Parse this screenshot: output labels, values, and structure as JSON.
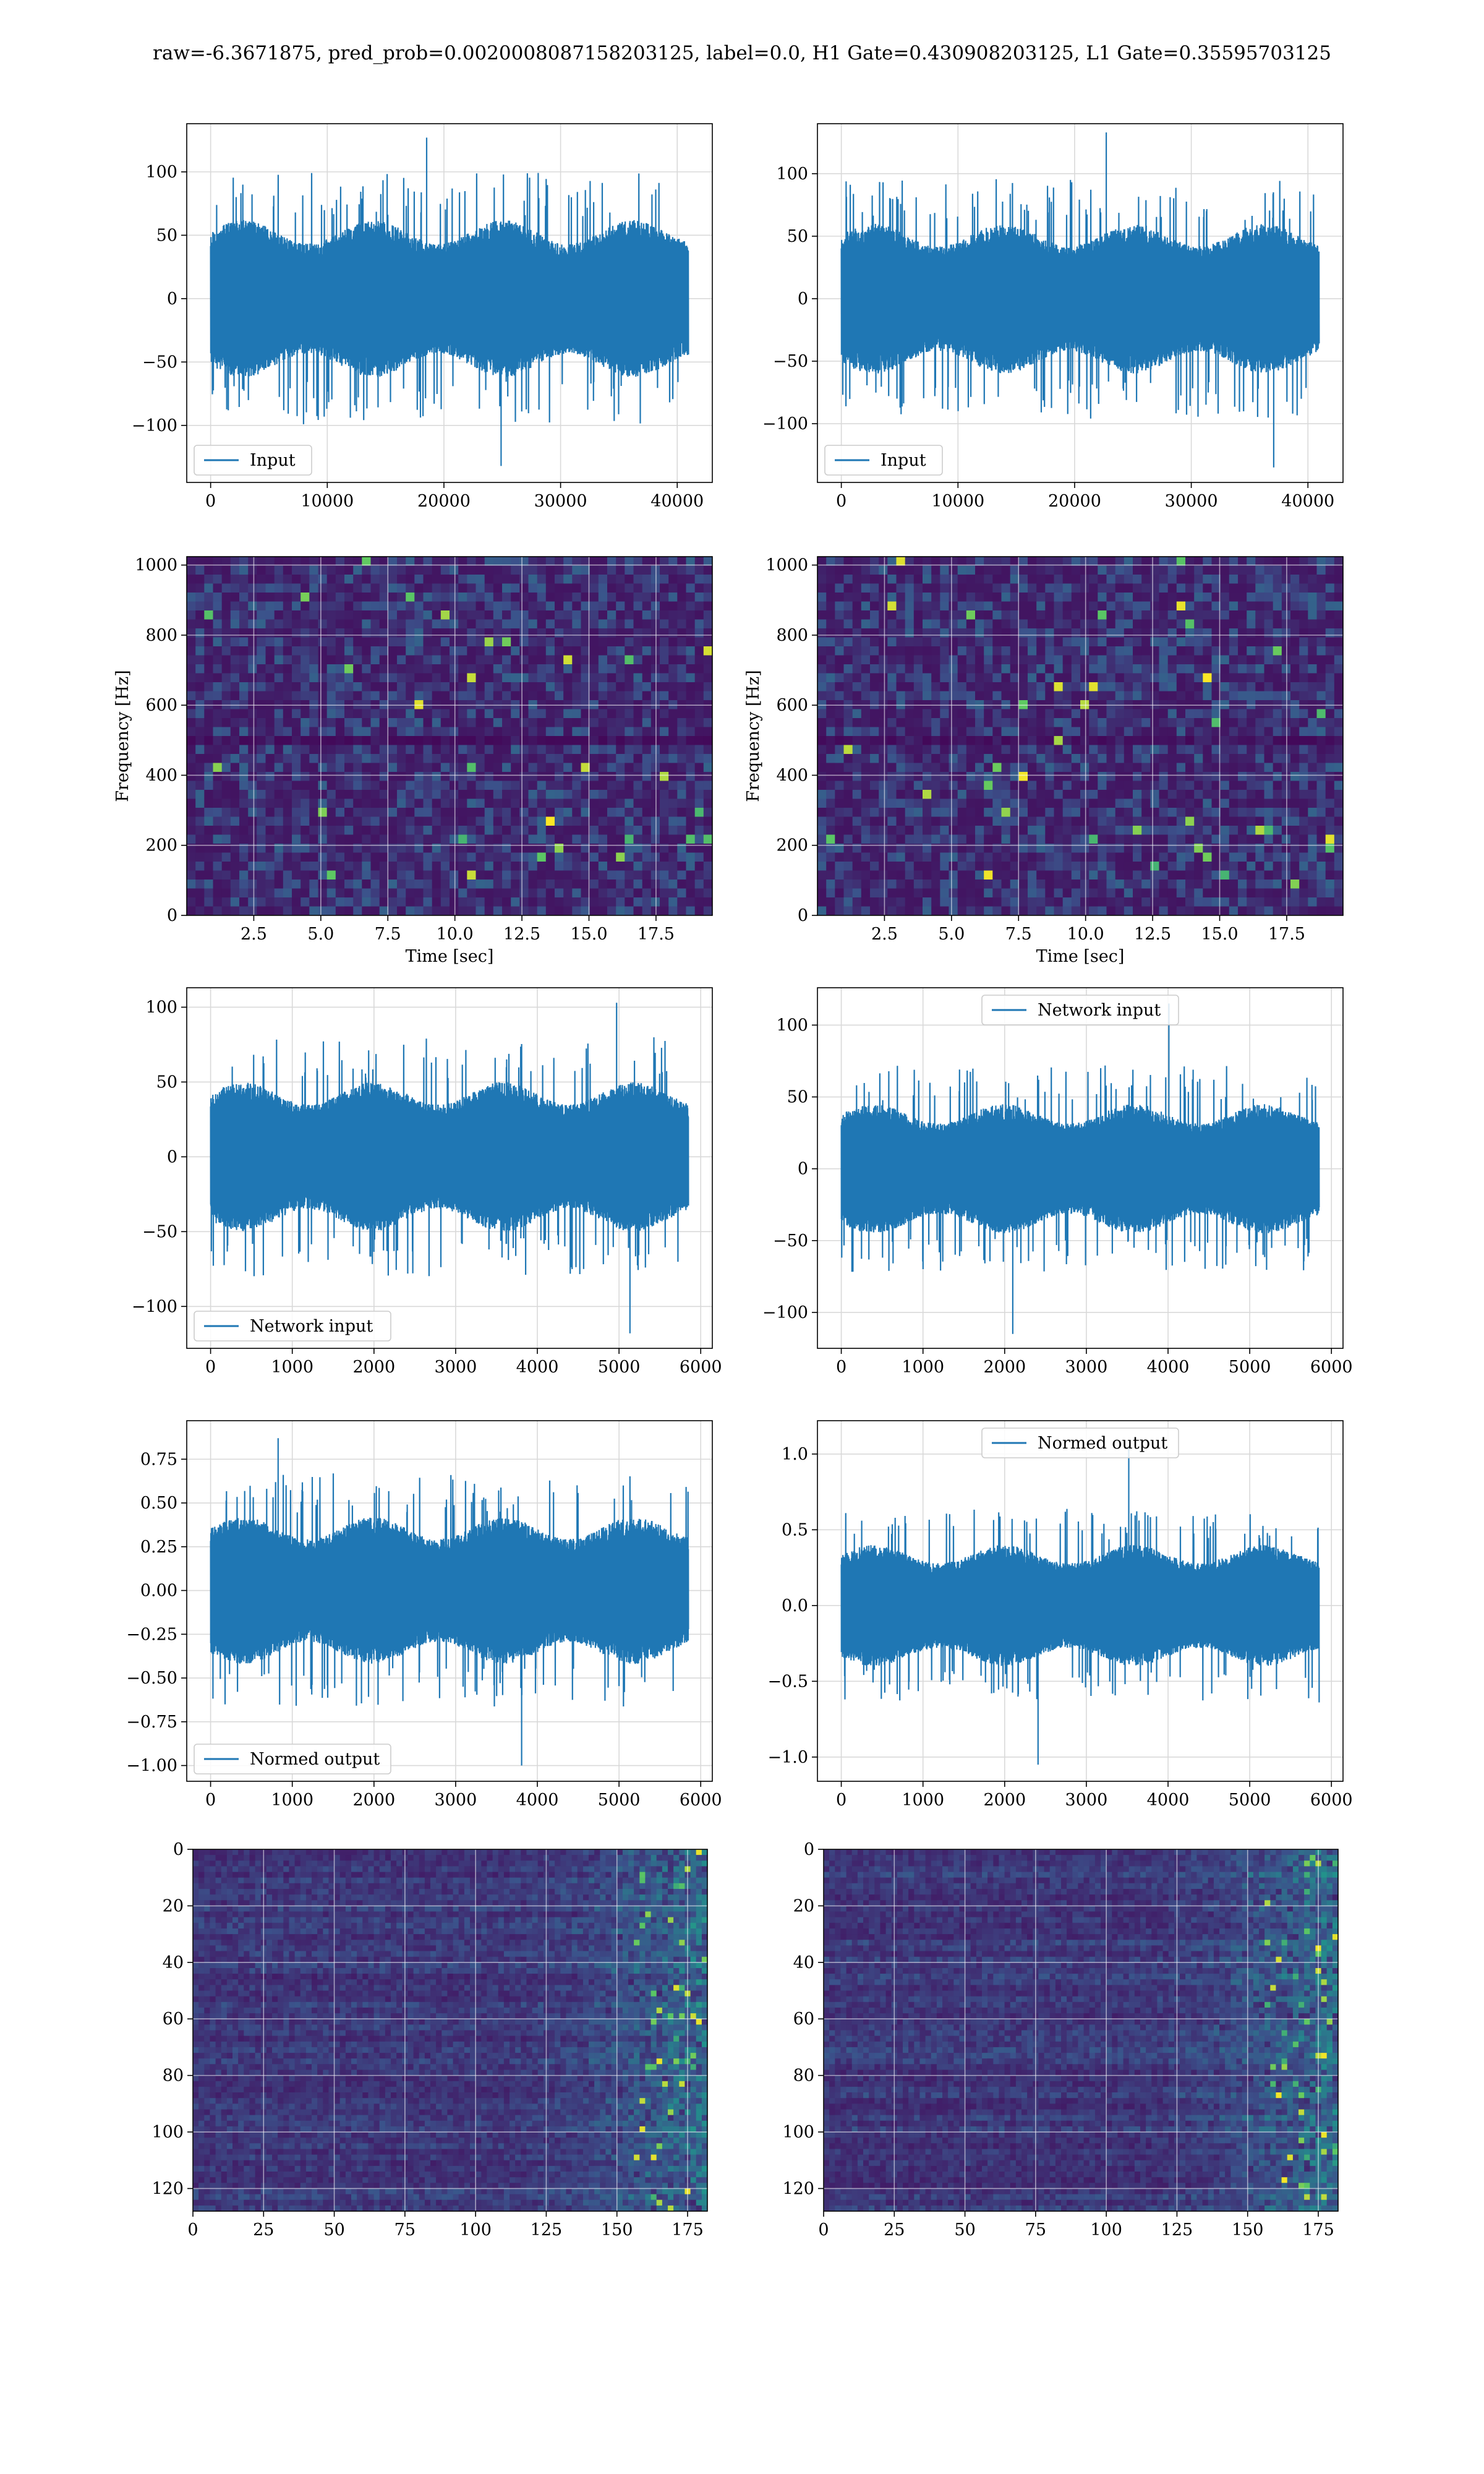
{
  "suptitle": "raw=-6.3671875, pred_prob=0.0020008087158203125, label=0.0, H1 Gate=0.430908203125, L1 Gate=0.35595703125",
  "colors": {
    "line": "#1f77b4",
    "grid": "#d9d9d9",
    "viridis": [
      "#440154",
      "#3b528b",
      "#21918c",
      "#5ec962",
      "#fde725"
    ]
  },
  "chart_data": [
    {
      "id": "h1-input",
      "type": "line",
      "seed": 11,
      "x_range": [
        0,
        40960
      ],
      "xlim": [
        -2048,
        43008
      ],
      "ylim": [
        -145,
        138
      ],
      "xticks": [
        0,
        10000,
        20000,
        30000,
        40000
      ],
      "xtick_labels": [
        "0",
        "10000",
        "20000",
        "30000",
        "40000"
      ],
      "yticks": [
        -100,
        -50,
        0,
        50,
        100
      ],
      "ytick_labels": [
        "−100",
        "−50",
        "0",
        "50",
        "100"
      ],
      "envelope": {
        "core": 62,
        "peak_max": 127,
        "peak_min": -132
      },
      "legend": {
        "label": "Input",
        "loc": "lower left"
      },
      "xlabel": "",
      "ylabel": "",
      "grid": true
    },
    {
      "id": "l1-input",
      "type": "line",
      "seed": 23,
      "x_range": [
        0,
        40960
      ],
      "xlim": [
        -2048,
        43008
      ],
      "ylim": [
        -147,
        140
      ],
      "xticks": [
        0,
        10000,
        20000,
        30000,
        40000
      ],
      "xtick_labels": [
        "0",
        "10000",
        "20000",
        "30000",
        "40000"
      ],
      "yticks": [
        -100,
        -50,
        0,
        50,
        100
      ],
      "ytick_labels": [
        "−100",
        "−50",
        "0",
        "50",
        "100"
      ],
      "envelope": {
        "core": 60,
        "peak_max": 133,
        "peak_min": -135
      },
      "legend": {
        "label": "Input",
        "loc": "lower left"
      },
      "xlabel": "",
      "ylabel": "",
      "grid": true
    },
    {
      "id": "h1-spectrogram",
      "type": "heatmap",
      "seed": 37,
      "kind": "spectrogram",
      "xlim": [
        0,
        19.6
      ],
      "ylim": [
        0,
        1024
      ],
      "xticks": [
        2.5,
        5.0,
        7.5,
        10.0,
        12.5,
        15.0,
        17.5
      ],
      "xtick_labels": [
        "2.5",
        "5.0",
        "7.5",
        "10.0",
        "12.5",
        "15.0",
        "17.5"
      ],
      "yticks": [
        0,
        200,
        400,
        600,
        800,
        1000
      ],
      "ytick_labels": [
        "0",
        "200",
        "400",
        "600",
        "800",
        "1000"
      ],
      "xlabel": "Time [sec]",
      "ylabel": "Frequency [Hz]",
      "grid": true
    },
    {
      "id": "l1-spectrogram",
      "type": "heatmap",
      "seed": 41,
      "kind": "spectrogram",
      "xlim": [
        0,
        19.6
      ],
      "ylim": [
        0,
        1024
      ],
      "xticks": [
        2.5,
        5.0,
        7.5,
        10.0,
        12.5,
        15.0,
        17.5
      ],
      "xtick_labels": [
        "2.5",
        "5.0",
        "7.5",
        "10.0",
        "12.5",
        "15.0",
        "17.5"
      ],
      "yticks": [
        0,
        200,
        400,
        600,
        800,
        1000
      ],
      "ytick_labels": [
        "0",
        "200",
        "400",
        "600",
        "800",
        "1000"
      ],
      "xlabel": "Time [sec]",
      "ylabel": "Frequency [Hz]",
      "grid": true
    },
    {
      "id": "h1-network-input",
      "type": "line",
      "seed": 53,
      "x_range": [
        0,
        5850
      ],
      "xlim": [
        -292,
        6142
      ],
      "ylim": [
        -128,
        113
      ],
      "xticks": [
        0,
        1000,
        2000,
        3000,
        4000,
        5000,
        6000
      ],
      "xtick_labels": [
        "0",
        "1000",
        "2000",
        "3000",
        "4000",
        "5000",
        "6000"
      ],
      "yticks": [
        -100,
        -50,
        0,
        50,
        100
      ],
      "ytick_labels": [
        "−100",
        "−50",
        "0",
        "50",
        "100"
      ],
      "envelope": {
        "core": 50,
        "peak_max": 103,
        "peak_min": -118
      },
      "legend": {
        "label": "Network input",
        "loc": "lower left"
      },
      "xlabel": "",
      "ylabel": "",
      "grid": true
    },
    {
      "id": "l1-network-input",
      "type": "line",
      "seed": 67,
      "x_range": [
        0,
        5850
      ],
      "xlim": [
        -292,
        6142
      ],
      "ylim": [
        -125,
        126
      ],
      "xticks": [
        0,
        1000,
        2000,
        3000,
        4000,
        5000,
        6000
      ],
      "xtick_labels": [
        "0",
        "1000",
        "2000",
        "3000",
        "4000",
        "5000",
        "6000"
      ],
      "yticks": [
        -100,
        -50,
        0,
        50,
        100
      ],
      "ytick_labels": [
        "−100",
        "−50",
        "0",
        "50",
        "100"
      ],
      "envelope": {
        "core": 45,
        "peak_max": 115,
        "peak_min": -115
      },
      "legend": {
        "label": "Network input",
        "loc": "upper center"
      },
      "xlabel": "",
      "ylabel": "",
      "grid": true
    },
    {
      "id": "h1-normed-output",
      "type": "line",
      "seed": 71,
      "x_range": [
        0,
        5850
      ],
      "xlim": [
        -292,
        6142
      ],
      "ylim": [
        -1.09,
        0.97
      ],
      "xticks": [
        0,
        1000,
        2000,
        3000,
        4000,
        5000,
        6000
      ],
      "xtick_labels": [
        "0",
        "1000",
        "2000",
        "3000",
        "4000",
        "5000",
        "6000"
      ],
      "yticks": [
        -1.0,
        -0.75,
        -0.5,
        -0.25,
        0.0,
        0.25,
        0.5,
        0.75
      ],
      "ytick_labels": [
        "−1.00",
        "−0.75",
        "−0.50",
        "−0.25",
        "0.00",
        "0.25",
        "0.50",
        "0.75"
      ],
      "envelope": {
        "core": 0.42,
        "peak_max": 0.87,
        "peak_min": -1.0
      },
      "legend": {
        "label": "Normed output",
        "loc": "lower left"
      },
      "xlabel": "",
      "ylabel": "",
      "grid": true
    },
    {
      "id": "l1-normed-output",
      "type": "line",
      "seed": 83,
      "x_range": [
        0,
        5850
      ],
      "xlim": [
        -292,
        6142
      ],
      "ylim": [
        -1.16,
        1.22
      ],
      "xticks": [
        0,
        1000,
        2000,
        3000,
        4000,
        5000,
        6000
      ],
      "xtick_labels": [
        "0",
        "1000",
        "2000",
        "3000",
        "4000",
        "5000",
        "6000"
      ],
      "yticks": [
        -1.0,
        -0.5,
        0.0,
        0.5,
        1.0
      ],
      "ytick_labels": [
        "−1.0",
        "−0.5",
        "0.0",
        "0.5",
        "1.0"
      ],
      "envelope": {
        "core": 0.4,
        "peak_max": 1.05,
        "peak_min": -1.05
      },
      "legend": {
        "label": "Normed output",
        "loc": "upper center"
      },
      "xlabel": "",
      "ylabel": "",
      "grid": true
    },
    {
      "id": "h1-feature-map",
      "type": "heatmap",
      "seed": 97,
      "kind": "features",
      "xlim": [
        0,
        182
      ],
      "ylim": [
        128,
        0
      ],
      "xticks": [
        0,
        25,
        50,
        75,
        100,
        125,
        150,
        175
      ],
      "xtick_labels": [
        "0",
        "25",
        "50",
        "75",
        "100",
        "125",
        "150",
        "175"
      ],
      "yticks": [
        0,
        20,
        40,
        60,
        80,
        100,
        120
      ],
      "ytick_labels": [
        "0",
        "20",
        "40",
        "60",
        "80",
        "100",
        "120"
      ],
      "xlabel": "",
      "ylabel": "",
      "grid": true
    },
    {
      "id": "l1-feature-map",
      "type": "heatmap",
      "seed": 101,
      "kind": "features",
      "xlim": [
        0,
        182
      ],
      "ylim": [
        128,
        0
      ],
      "xticks": [
        0,
        25,
        50,
        75,
        100,
        125,
        150,
        175
      ],
      "xtick_labels": [
        "0",
        "25",
        "50",
        "75",
        "100",
        "125",
        "150",
        "175"
      ],
      "yticks": [
        0,
        20,
        40,
        60,
        80,
        100,
        120
      ],
      "ytick_labels": [
        "0",
        "20",
        "40",
        "60",
        "80",
        "100",
        "120"
      ],
      "xlabel": "",
      "ylabel": "",
      "grid": true
    }
  ]
}
